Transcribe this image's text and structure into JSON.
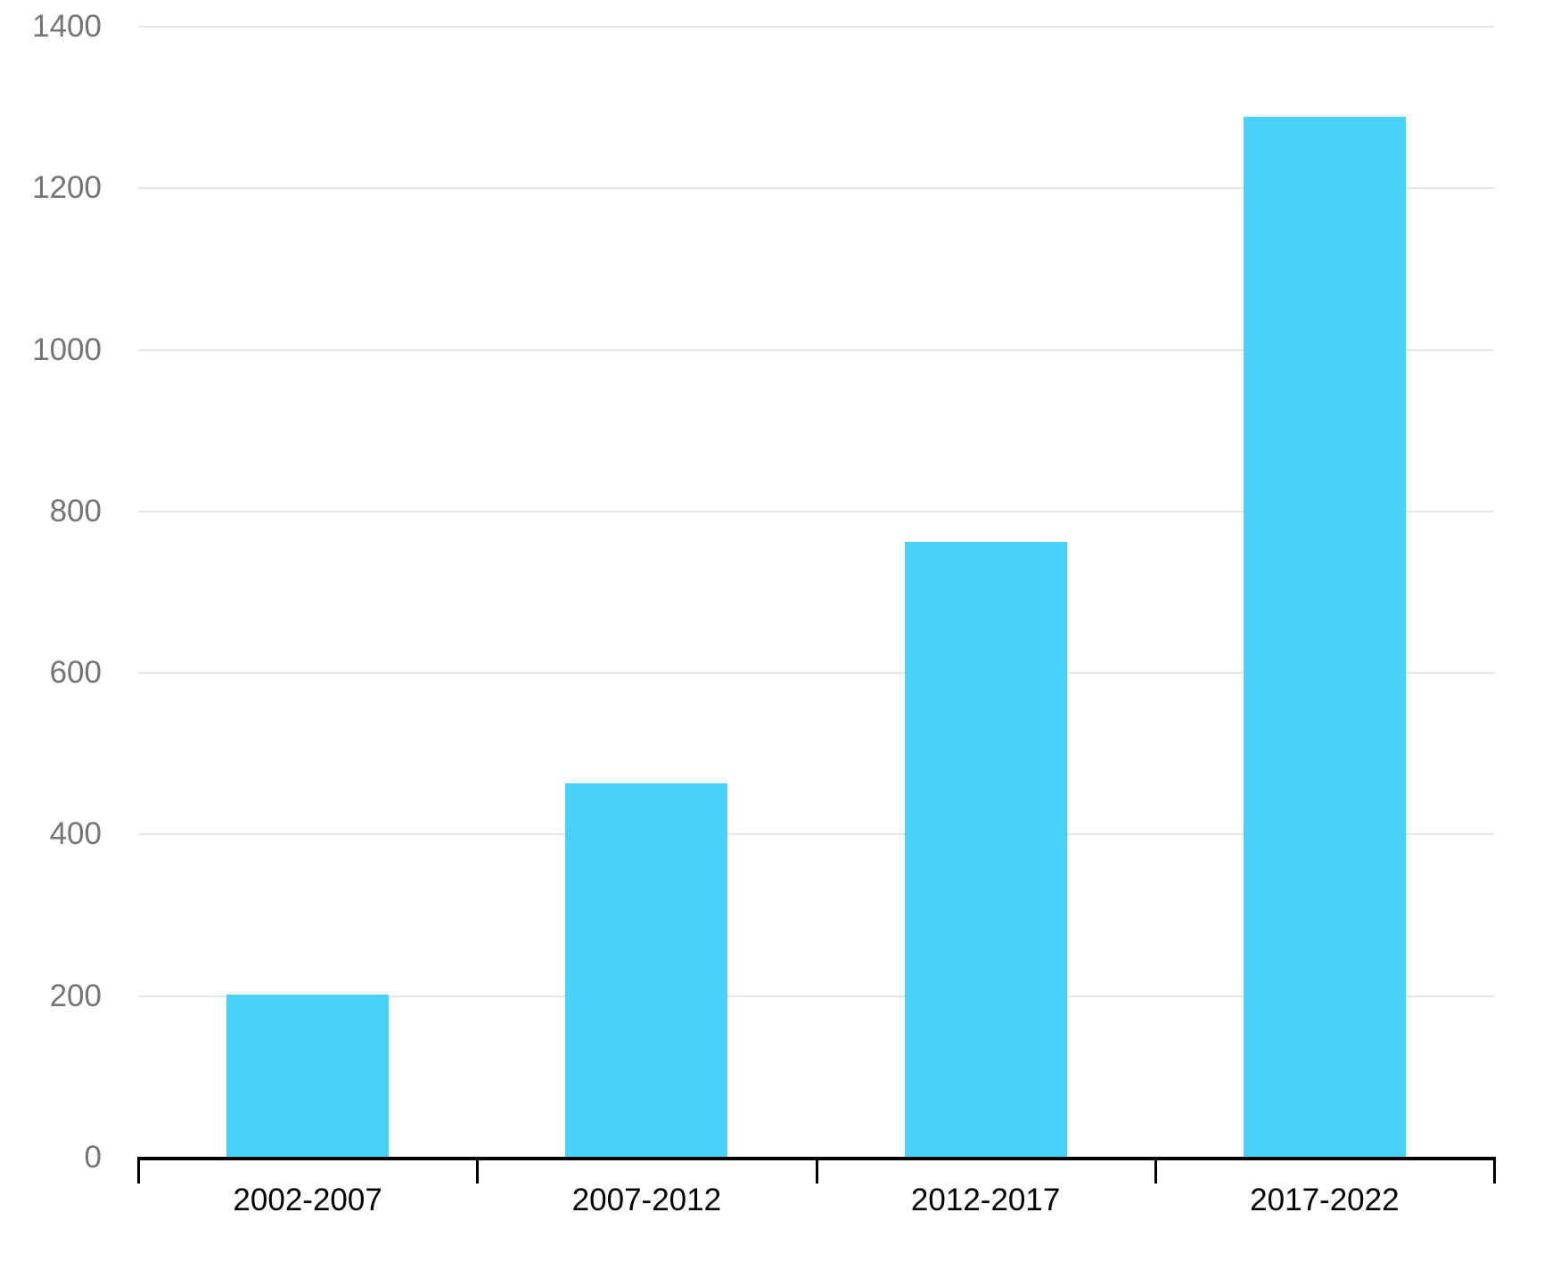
{
  "chart_data": {
    "type": "bar",
    "title": "",
    "xlabel": "",
    "ylabel": "",
    "categories": [
      "2002-2007",
      "2007-2012",
      "2012-2017",
      "2017-2022"
    ],
    "values": [
      202,
      463,
      762,
      1289
    ],
    "ylim": [
      0,
      1400
    ],
    "yticks": [
      0,
      200,
      400,
      600,
      800,
      1000,
      1200,
      1400
    ],
    "grid": true,
    "legend": false,
    "bar_color": "#48D2F8",
    "gridline_color": "#E6E6E6",
    "axis_color": "#000000",
    "y_tick_label_color": "#757575",
    "x_tick_label_color": "#000000",
    "background_color": "#FFFFFF"
  }
}
